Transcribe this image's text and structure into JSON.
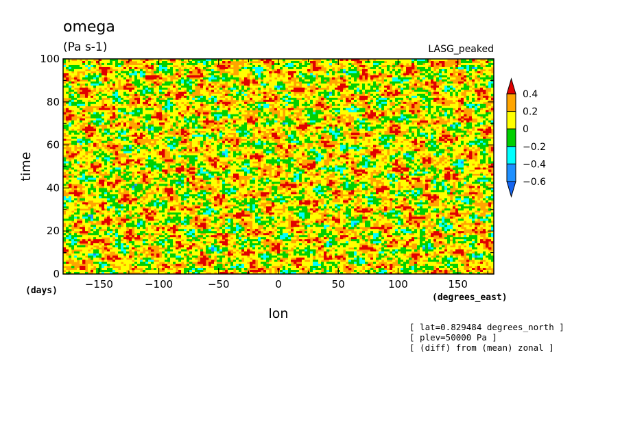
{
  "chart_data": {
    "type": "heatmap",
    "title": "omega",
    "units": "(Pa s-1)",
    "dataset_label": "LASG_peaked",
    "xlabel": "lon",
    "ylabel": "time",
    "x_units": "(degrees_east)",
    "y_units": "(days)",
    "xlim": [
      -180,
      180
    ],
    "ylim": [
      0,
      100
    ],
    "x_ticks": [
      -150,
      -100,
      -50,
      0,
      50,
      100,
      150
    ],
    "x_tick_labels": [
      "−150",
      "−100",
      "−50",
      "0",
      "50",
      "100",
      "150"
    ],
    "y_ticks": [
      0,
      20,
      40,
      60,
      80,
      100
    ],
    "y_tick_labels": [
      "0",
      "20",
      "40",
      "60",
      "80",
      "100"
    ],
    "colorbar": {
      "levels": [
        -0.6,
        -0.4,
        -0.2,
        0,
        0.2,
        0.4
      ],
      "labels": [
        "−0.6",
        "−0.4",
        "−0.2",
        "0",
        "0.2",
        "0.4"
      ],
      "colors": [
        "#1464f0",
        "#1e90ff",
        "#00ffff",
        "#00d000",
        "#ffff00",
        "#ffa500",
        "#e00000"
      ],
      "extend": "both"
    },
    "annotations": [
      "[ lat=0.829484 degrees_north ]",
      "[ plev=50000 Pa ]",
      "[ (diff) from (mean) zonal ]"
    ],
    "field_description": "noisy zonal-anomaly field; mostly near 0.1 to 0.3 with elongated negative streaks tilted eastward-upward",
    "grid": false
  }
}
